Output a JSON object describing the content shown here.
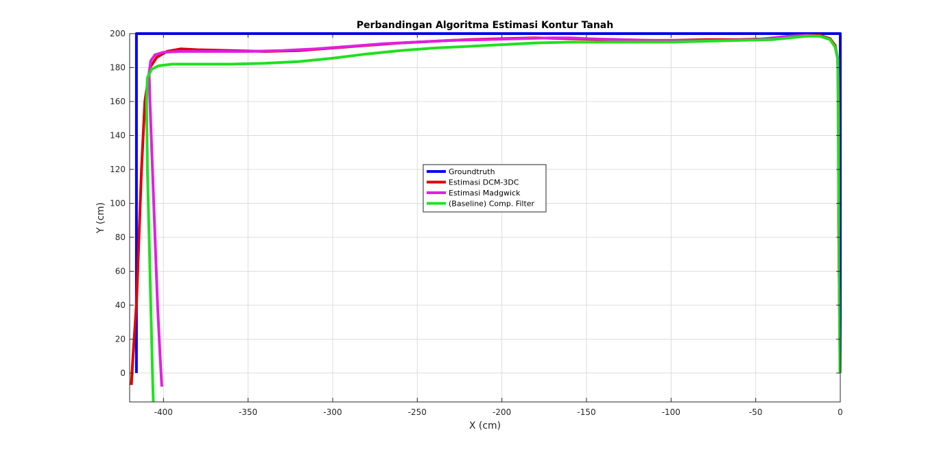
{
  "chart_data": {
    "type": "line",
    "title": "Perbandingan Algoritma Estimasi Kontur Tanah",
    "xlabel": "X (cm)",
    "ylabel": "Y (cm)",
    "xlim": [
      -420,
      0
    ],
    "ylim": [
      -17,
      200
    ],
    "xticks": [
      -400,
      -350,
      -300,
      -250,
      -200,
      -150,
      -100,
      -50,
      0
    ],
    "yticks": [
      0,
      20,
      40,
      60,
      80,
      100,
      120,
      140,
      160,
      180,
      200
    ],
    "grid": true,
    "legend_position": "center",
    "series": [
      {
        "name": "Groundtruth",
        "color": "#0000FF",
        "x": [
          -416,
          -416,
          0,
          0
        ],
        "y": [
          0,
          200,
          200,
          0
        ]
      },
      {
        "name": "Estimasi DCM-3DC",
        "color": "#E00000",
        "x": [
          -419,
          -418,
          -416,
          -414.5,
          -413,
          -411,
          -408,
          -404,
          -398,
          -390,
          -380,
          -360,
          -340,
          -320,
          -300,
          -280,
          -260,
          -240,
          -220,
          -200,
          -180,
          -160,
          -140,
          -120,
          -100,
          -80,
          -60,
          -40,
          -30,
          -20,
          -12,
          -6,
          -3,
          -1.5,
          -1,
          -1,
          -0.7,
          -0.3,
          0
        ],
        "y": [
          -7,
          10,
          40,
          80,
          120,
          160,
          180,
          186,
          189.5,
          191,
          190.5,
          190,
          189.5,
          190,
          191.5,
          193,
          194.5,
          195.5,
          196.5,
          197,
          197.5,
          197,
          196.5,
          196,
          196,
          196.5,
          196.5,
          197,
          198,
          199,
          199,
          197,
          193,
          185,
          150,
          100,
          60,
          20,
          0
        ]
      },
      {
        "name": "Estimasi Madgwick",
        "color": "#E020E0",
        "x": [
          -401,
          -402,
          -403.5,
          -405,
          -406.5,
          -408,
          -408.5,
          -407.5,
          -405,
          -400,
          -390,
          -370,
          -350,
          -330,
          -310,
          -290,
          -270,
          -250,
          -230,
          -210,
          -190,
          -170,
          -160,
          -150,
          -130,
          -110,
          -90,
          -70,
          -50,
          -40,
          -30,
          -20,
          -12,
          -6,
          -3,
          -1.5,
          -1,
          -1,
          -0.7,
          -0.3,
          0
        ],
        "y": [
          -8,
          10,
          40,
          80,
          120,
          160,
          177,
          184,
          187.5,
          189,
          189.5,
          189.5,
          189.5,
          190,
          191,
          192.5,
          194,
          195,
          196,
          196.5,
          197,
          197.5,
          197.5,
          197,
          196.5,
          196,
          196,
          196,
          196.5,
          197.5,
          198.5,
          199,
          198.5,
          196.5,
          192,
          185,
          150,
          100,
          60,
          20,
          0
        ]
      },
      {
        "name": "(Baseline) Comp. Filter",
        "color": "#20E020",
        "x": [
          -406,
          -406.5,
          -407.5,
          -408.5,
          -409.5,
          -410,
          -409.5,
          -407,
          -403,
          -395,
          -380,
          -360,
          -340,
          -320,
          -300,
          -280,
          -260,
          -240,
          -220,
          -200,
          -180,
          -160,
          -140,
          -120,
          -100,
          -80,
          -60,
          -40,
          -30,
          -20,
          -12,
          -6,
          -3,
          -1.5,
          -1.2,
          -1,
          -0.7,
          -0.4,
          -0.2
        ],
        "y": [
          -17,
          0,
          40,
          80,
          120,
          160,
          174,
          179,
          181,
          182,
          182,
          182,
          182.5,
          183.5,
          185.5,
          188,
          190,
          191.5,
          192.5,
          193.5,
          194.5,
          195,
          195,
          195,
          195,
          195.5,
          196,
          196.5,
          197.5,
          198.5,
          198.5,
          196.5,
          192,
          185,
          150,
          110,
          80,
          30,
          0
        ]
      }
    ]
  }
}
